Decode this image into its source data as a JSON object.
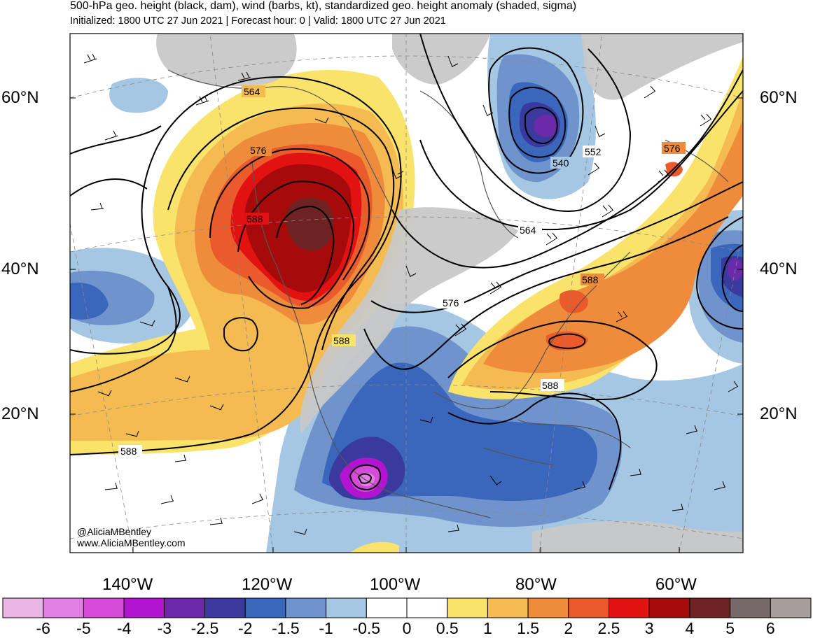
{
  "title": "500-hPa geo. height (black, dam), wind (barbs, kt), standardized geo. height anomaly (shaded, sigma)",
  "subtitle": "Initialized: 1800 UTC 27 Jun 2021 | Forecast hour: 0 | Valid: 1800 UTC 27 Jun 2021",
  "credits": [
    "@AliciaMBentley",
    "www.AliciaMBentley.com"
  ],
  "axes": {
    "lat_labels": [
      "60°N",
      "40°N",
      "20°N"
    ],
    "lon_labels": [
      "140°W",
      "120°W",
      "100°W",
      "80°W",
      "60°W"
    ]
  },
  "contour_labels": [
    "564",
    "576",
    "588",
    "588",
    "576",
    "588",
    "564",
    "552",
    "540",
    "576",
    "588",
    "588"
  ],
  "colorbar": {
    "labels": [
      "-6",
      "-5",
      "-4",
      "-3",
      "-2.5",
      "-2",
      "-1.5",
      "-1",
      "-0.5",
      "0",
      "0.5",
      "1",
      "1.5",
      "2",
      "2.5",
      "3",
      "4",
      "5",
      "6"
    ],
    "colors": [
      "#eab6e6",
      "#e27fe4",
      "#d54ad9",
      "#b314d0",
      "#6b2aa8",
      "#3a3a9e",
      "#3a66bc",
      "#6f93cc",
      "#a6c7e3",
      "#ffffff",
      "#ffffff",
      "#f9e36a",
      "#f3bb52",
      "#ef8c3c",
      "#ea5a2b",
      "#e21212",
      "#a60a0a",
      "#6e2222",
      "#756a67",
      "#a79d9a"
    ]
  }
}
